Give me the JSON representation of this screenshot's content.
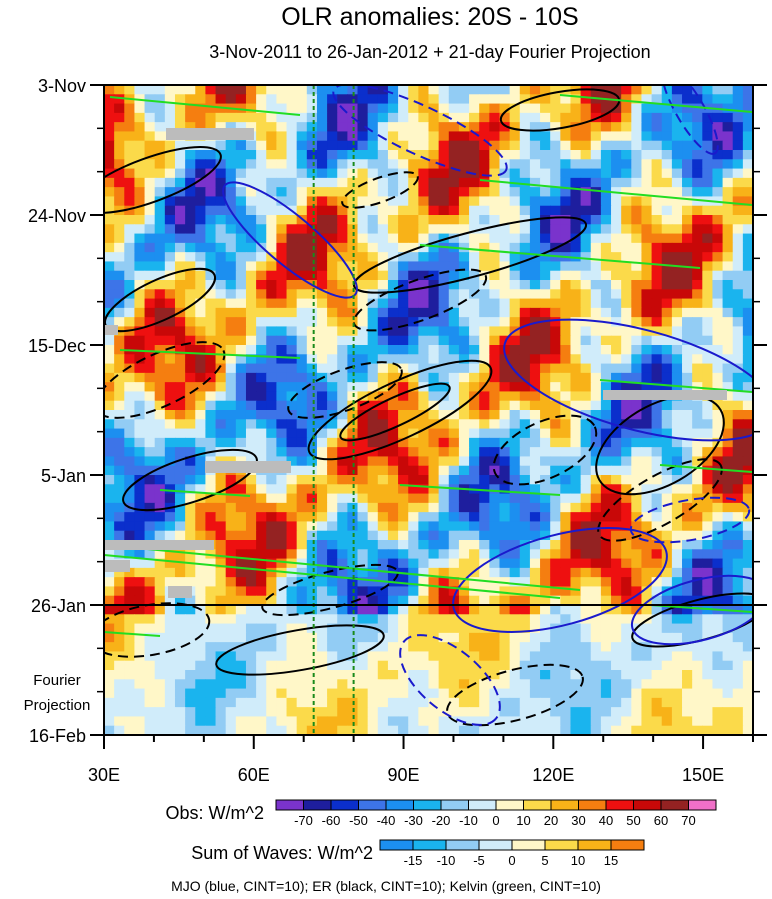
{
  "chart_data": {
    "type": "heatmap",
    "title": "OLR anomalies: 20S - 10S",
    "subtitle": "3-Nov-2011 to 26-Jan-2012 + 21-day Fourier Projection",
    "x_ticks": [
      {
        "label": "30E",
        "lon": 30
      },
      {
        "label": "60E",
        "lon": 60
      },
      {
        "label": "90E",
        "lon": 90
      },
      {
        "label": "120E",
        "lon": 120
      },
      {
        "label": "150E",
        "lon": 150
      }
    ],
    "xlim": [
      30,
      160
    ],
    "y_ticks": [
      {
        "label": "3-Nov",
        "day": 0
      },
      {
        "label": "24-Nov",
        "day": 21
      },
      {
        "label": "15-Dec",
        "day": 42
      },
      {
        "label": "5-Jan",
        "day": 63
      },
      {
        "label": "26-Jan",
        "day": 84
      },
      {
        "label": "16-Feb",
        "day": 105
      }
    ],
    "ylim_days": [
      0,
      105
    ],
    "projection_start_day": 84,
    "projection_label_1": "Fourier",
    "projection_label_2": "Projection",
    "reference_longitudes": [
      72,
      80
    ],
    "obs_colorbar": {
      "label": "Obs: W/m^2",
      "levels": [
        "-70",
        "-60",
        "-50",
        "-40",
        "-30",
        "-20",
        "-10",
        "0",
        "10",
        "20",
        "30",
        "40",
        "50",
        "60",
        "70"
      ],
      "colors": [
        "#7a33cc",
        "#1e1e9e",
        "#0b2fcc",
        "#3d74e8",
        "#1c8ff0",
        "#1ab4ee",
        "#92ccf4",
        "#d0ecfa",
        "#fff7c8",
        "#fbda4a",
        "#f8b218",
        "#f57e10",
        "#ee1010",
        "#c80808",
        "#942222",
        "#f070c8"
      ]
    },
    "waves_colorbar": {
      "label": "Sum of Waves: W/m^2",
      "levels": [
        "-15",
        "-10",
        "-5",
        "0",
        "5",
        "10",
        "15"
      ],
      "colors": [
        "#1c8ff0",
        "#1ab4ee",
        "#92ccf4",
        "#d0ecfa",
        "#fff7c8",
        "#fbda4a",
        "#f8b218",
        "#f57e10"
      ]
    },
    "footer": "MJO (blue, CINT=10); ER (black, CINT=10); Kelvin (green, CINT=10)",
    "series": [
      {
        "name": "MJO",
        "color": "#1a1acc"
      },
      {
        "name": "ER",
        "color": "#000000"
      },
      {
        "name": "Kelvin",
        "color": "#22dd22"
      }
    ]
  }
}
